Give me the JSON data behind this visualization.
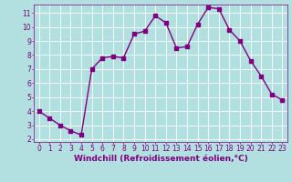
{
  "x": [
    0,
    1,
    2,
    3,
    4,
    5,
    6,
    7,
    8,
    9,
    10,
    11,
    12,
    13,
    14,
    15,
    16,
    17,
    18,
    19,
    20,
    21,
    22,
    23
  ],
  "y": [
    4.0,
    3.5,
    3.0,
    2.6,
    2.3,
    7.0,
    7.8,
    7.9,
    7.8,
    9.5,
    9.7,
    10.8,
    10.3,
    8.5,
    8.6,
    10.2,
    11.4,
    11.3,
    9.8,
    9.0,
    7.6,
    6.5,
    5.2,
    4.8
  ],
  "xlabel": "Windchill (Refroidissement éolien,°C)",
  "xlim": [
    -0.5,
    23.5
  ],
  "ylim": [
    1.8,
    11.6
  ],
  "yticks": [
    2,
    3,
    4,
    5,
    6,
    7,
    8,
    9,
    10,
    11
  ],
  "xticks": [
    0,
    1,
    2,
    3,
    4,
    5,
    6,
    7,
    8,
    9,
    10,
    11,
    12,
    13,
    14,
    15,
    16,
    17,
    18,
    19,
    20,
    21,
    22,
    23
  ],
  "line_color": "#800080",
  "marker": "s",
  "marker_size": 2.2,
  "bg_color": "#b2e0e0",
  "grid_color": "#ffffff",
  "axis_label_color": "#800080",
  "tick_label_color": "#800080",
  "tick_label_fontsize": 5.5,
  "xlabel_fontsize": 6.5,
  "line_width": 1.0
}
